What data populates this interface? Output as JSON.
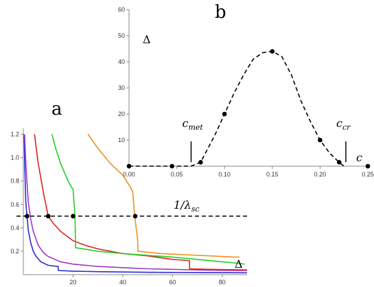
{
  "chart_data": [
    {
      "panel_label": "a",
      "type": "line",
      "xlim": [
        0,
        90
      ],
      "ylim": [
        0,
        1.25
      ],
      "x_ticks": [
        20,
        40,
        60,
        80
      ],
      "y_ticks": [
        0.2,
        0.4,
        0.6,
        0.8,
        1.0,
        1.2
      ],
      "x_tick_labels": [
        "20",
        "40",
        "60",
        "80"
      ],
      "y_tick_labels": [
        "0.2",
        "0.4",
        "0.6",
        "0.8",
        "1.0",
        "1.2"
      ],
      "curve_label": "Δ",
      "threshold": {
        "y": 0.5,
        "label_main": "1/λ",
        "label_sub": "sc"
      },
      "series": [
        {
          "color": "#2a2ad6",
          "x": [
            0.3,
            0.6,
            1,
            2,
            3,
            4,
            5,
            7,
            10,
            14,
            14.1,
            20,
            30,
            50,
            70,
            90
          ],
          "y": [
            1.2,
            0.9,
            0.62,
            0.38,
            0.27,
            0.2,
            0.16,
            0.11,
            0.08,
            0.07,
            0.035,
            0.03,
            0.025,
            0.02,
            0.018,
            0.016
          ]
        },
        {
          "color": "#a034c0",
          "x": [
            0.5,
            1,
            2,
            3,
            4,
            6,
            8,
            10,
            15,
            20,
            30,
            40,
            50,
            60,
            70,
            80,
            90
          ],
          "y": [
            1.2,
            0.95,
            0.62,
            0.47,
            0.37,
            0.25,
            0.19,
            0.155,
            0.11,
            0.09,
            0.07,
            0.06,
            0.05,
            0.045,
            0.04,
            0.037,
            0.035
          ]
        },
        {
          "color": "#e02020",
          "x": [
            4.5,
            6,
            8,
            10,
            12,
            15,
            20,
            25,
            30,
            40,
            50,
            60,
            66.8,
            66.9,
            75,
            90
          ],
          "y": [
            1.2,
            0.95,
            0.71,
            0.5,
            0.44,
            0.37,
            0.29,
            0.25,
            0.22,
            0.18,
            0.16,
            0.13,
            0.12,
            0.05,
            0.045,
            0.04
          ]
        },
        {
          "color": "#20d020",
          "x": [
            11.5,
            13,
            15,
            17,
            18,
            19,
            20,
            20.1,
            20.8,
            21,
            30,
            40,
            50,
            60,
            70,
            80,
            85,
            89
          ],
          "y": [
            1.2,
            1.08,
            0.95,
            0.85,
            0.8,
            0.76,
            0.73,
            0.7,
            0.5,
            0.23,
            0.2,
            0.18,
            0.165,
            0.15,
            0.13,
            0.11,
            0.1,
            0.09
          ]
        },
        {
          "color": "#f0901e",
          "x": [
            26,
            30,
            35,
            40,
            43,
            44,
            44.8,
            46,
            46.1,
            55,
            65,
            75,
            85,
            87
          ],
          "y": [
            1.2,
            1.08,
            0.95,
            0.85,
            0.75,
            0.71,
            0.5,
            0.3,
            0.2,
            0.18,
            0.17,
            0.16,
            0.15,
            0.15
          ]
        }
      ],
      "points": [
        {
          "x": 1.5,
          "y": 0.5
        },
        {
          "x": 10,
          "y": 0.5
        },
        {
          "x": 20,
          "y": 0.5
        },
        {
          "x": 45,
          "y": 0.5
        }
      ]
    },
    {
      "panel_label": "b",
      "type": "line",
      "xlabel": "c",
      "ylabel": "Δ",
      "xlim": [
        0,
        0.25
      ],
      "ylim": [
        0,
        60
      ],
      "x_ticks": [
        0,
        0.05,
        0.1,
        0.15,
        0.2,
        0.25
      ],
      "y_ticks": [
        10,
        20,
        30,
        40,
        50,
        60
      ],
      "x_tick_labels": [
        "0.00",
        "0.05",
        "0.10",
        "0.15",
        "0.20",
        "0.25"
      ],
      "y_tick_labels": [
        "10",
        "20",
        "30",
        "40",
        "50",
        "60"
      ],
      "markers": [
        {
          "x": 0.065,
          "label_main": "c",
          "label_sub": "met"
        },
        {
          "x": 0.227,
          "label_main": "c",
          "label_sub": "cr"
        }
      ],
      "series": [
        {
          "style": "dashed",
          "x": [
            0,
            0.045,
            0.065,
            0.075,
            0.09,
            0.1,
            0.11,
            0.12,
            0.13,
            0.14,
            0.15,
            0.16,
            0.17,
            0.18,
            0.19,
            0.2,
            0.21,
            0.22,
            0.225
          ],
          "y": [
            0,
            0,
            0,
            1.5,
            12,
            20,
            28,
            35,
            41,
            43.5,
            44,
            42,
            35,
            25,
            17,
            10,
            5,
            1.5,
            0
          ]
        }
      ],
      "points": [
        {
          "x": 0,
          "y": 0
        },
        {
          "x": 0.045,
          "y": 0
        },
        {
          "x": 0.075,
          "y": 1.5
        },
        {
          "x": 0.1,
          "y": 20
        },
        {
          "x": 0.15,
          "y": 44
        },
        {
          "x": 0.2,
          "y": 10
        },
        {
          "x": 0.22,
          "y": 1.5
        },
        {
          "x": 0.25,
          "y": 0
        }
      ]
    }
  ]
}
